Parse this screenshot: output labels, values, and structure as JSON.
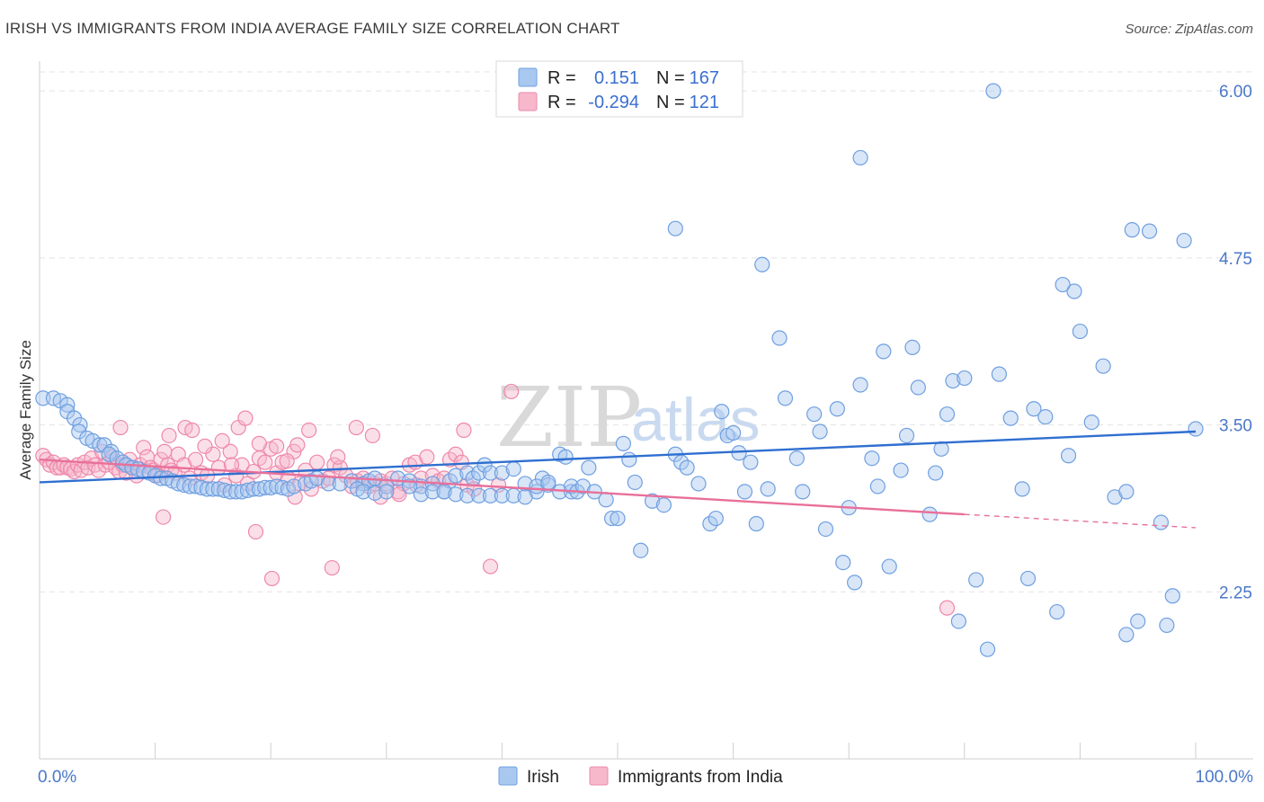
{
  "title": "IRISH VS IMMIGRANTS FROM INDIA AVERAGE FAMILY SIZE CORRELATION CHART",
  "source": "Source: ZipAtlas.com",
  "watermark": {
    "zip": "ZIP",
    "atlas": "atlas"
  },
  "legend": {
    "r_label": "R =",
    "n_label": "N =",
    "rows": [
      {
        "r": "0.151",
        "n": "167"
      },
      {
        "r": "-0.294",
        "n": "121"
      }
    ]
  },
  "colors": {
    "irish_fill": "#a8c8f0",
    "irish_stroke": "#6f9fe0",
    "irish_line": "#2f6fd0",
    "india_fill": "#f7b8cc",
    "india_stroke": "#ee88aa",
    "india_line": "#e8709a",
    "grid": "#e3e3e3",
    "axis_text": "#4a78c8"
  },
  "chart_data": {
    "type": "scatter",
    "title": "IRISH VS IMMIGRANTS FROM INDIA AVERAGE FAMILY SIZE CORRELATION CHART",
    "xlabel": "",
    "ylabel": "Average Family Size",
    "x_tick_labels": [
      "0.0%",
      "100.0%"
    ],
    "xlim": [
      0,
      100
    ],
    "ylim": [
      1.0,
      6.25
    ],
    "yticks": [
      2.25,
      3.5,
      4.75,
      6.0
    ],
    "ytick_labels": [
      "2.25",
      "3.50",
      "4.75",
      "6.00"
    ],
    "grid": "horizontal dashed",
    "legend_position": "top-center",
    "series": [
      {
        "name": "Irish",
        "R": 0.151,
        "N": 167,
        "trend": {
          "x0": 0,
          "y0": 3.07,
          "x1": 100,
          "y1": 3.45
        },
        "points": [
          [
            0.3,
            3.7
          ],
          [
            1.2,
            3.7
          ],
          [
            1.8,
            3.68
          ],
          [
            2.4,
            3.65
          ],
          [
            2.4,
            3.6
          ],
          [
            3.0,
            3.55
          ],
          [
            3.5,
            3.5
          ],
          [
            3.4,
            3.45
          ],
          [
            4.1,
            3.4
          ],
          [
            4.6,
            3.38
          ],
          [
            5.2,
            3.35
          ],
          [
            5.6,
            3.35
          ],
          [
            6.2,
            3.3
          ],
          [
            6.0,
            3.28
          ],
          [
            6.7,
            3.25
          ],
          [
            7.2,
            3.22
          ],
          [
            7.5,
            3.2
          ],
          [
            8.0,
            3.18
          ],
          [
            8.5,
            3.17
          ],
          [
            9.0,
            3.15
          ],
          [
            9.5,
            3.14
          ],
          [
            10.0,
            3.12
          ],
          [
            10.5,
            3.1
          ],
          [
            11.0,
            3.1
          ],
          [
            11.5,
            3.08
          ],
          [
            12.0,
            3.06
          ],
          [
            12.5,
            3.05
          ],
          [
            13.0,
            3.04
          ],
          [
            13.5,
            3.04
          ],
          [
            14.0,
            3.03
          ],
          [
            14.5,
            3.02
          ],
          [
            15.0,
            3.02
          ],
          [
            15.5,
            3.02
          ],
          [
            16.0,
            3.01
          ],
          [
            16.5,
            3.0
          ],
          [
            17.0,
            3.0
          ],
          [
            17.5,
            3.0
          ],
          [
            18.0,
            3.01
          ],
          [
            18.5,
            3.02
          ],
          [
            19.0,
            3.02
          ],
          [
            19.5,
            3.03
          ],
          [
            20.0,
            3.03
          ],
          [
            20.5,
            3.04
          ],
          [
            21.0,
            3.03
          ],
          [
            21.5,
            3.02
          ],
          [
            22.0,
            3.04
          ],
          [
            23.0,
            3.06
          ],
          [
            23.5,
            3.08
          ],
          [
            24.0,
            3.1
          ],
          [
            25.0,
            3.06
          ],
          [
            26.0,
            3.06
          ],
          [
            27.0,
            3.08
          ],
          [
            28.0,
            3.06
          ],
          [
            28.5,
            3.08
          ],
          [
            29.0,
            3.1
          ],
          [
            30.0,
            3.04
          ],
          [
            31.0,
            3.1
          ],
          [
            32.0,
            3.08
          ],
          [
            33.0,
            3.04
          ],
          [
            34.0,
            3.06
          ],
          [
            35.0,
            3.0
          ],
          [
            35.5,
            3.08
          ],
          [
            36.0,
            3.12
          ],
          [
            37.0,
            3.14
          ],
          [
            37.5,
            3.1
          ],
          [
            38.0,
            3.14
          ],
          [
            38.5,
            3.2
          ],
          [
            39.0,
            3.14
          ],
          [
            40.0,
            3.14
          ],
          [
            41.0,
            3.17
          ],
          [
            42.0,
            3.06
          ],
          [
            43.0,
            3.0
          ],
          [
            43.5,
            3.1
          ],
          [
            44.0,
            3.05
          ],
          [
            45.0,
            3.0
          ],
          [
            46.0,
            3.0
          ],
          [
            27.5,
            3.02
          ],
          [
            28.0,
            3.0
          ],
          [
            29.0,
            2.99
          ],
          [
            30.0,
            3.0
          ],
          [
            32.0,
            3.04
          ],
          [
            33.0,
            2.98
          ],
          [
            34.0,
            3.0
          ],
          [
            35.0,
            3.0
          ],
          [
            36.0,
            2.98
          ],
          [
            37.0,
            2.97
          ],
          [
            38.0,
            2.97
          ],
          [
            39.0,
            2.97
          ],
          [
            40.0,
            2.97
          ],
          [
            41.0,
            2.97
          ],
          [
            42.0,
            2.96
          ],
          [
            43.0,
            3.04
          ],
          [
            44.0,
            3.07
          ],
          [
            45.0,
            3.28
          ],
          [
            45.5,
            3.26
          ],
          [
            46.0,
            3.04
          ],
          [
            46.5,
            3.0
          ],
          [
            47.0,
            3.04
          ],
          [
            47.5,
            3.18
          ],
          [
            48.0,
            3.0
          ],
          [
            49.0,
            2.94
          ],
          [
            49.5,
            2.8
          ],
          [
            50.0,
            2.8
          ],
          [
            50.5,
            3.36
          ],
          [
            51.0,
            3.24
          ],
          [
            51.5,
            3.07
          ],
          [
            52.0,
            2.56
          ],
          [
            53.0,
            2.93
          ],
          [
            54.0,
            2.9
          ],
          [
            55.0,
            3.28
          ],
          [
            55.5,
            3.22
          ],
          [
            56.0,
            3.18
          ],
          [
            57.0,
            3.06
          ],
          [
            58.0,
            2.76
          ],
          [
            58.5,
            2.8
          ],
          [
            59.0,
            3.6
          ],
          [
            59.5,
            3.42
          ],
          [
            60.0,
            3.44
          ],
          [
            60.5,
            3.29
          ],
          [
            61.5,
            3.22
          ],
          [
            61.0,
            3.0
          ],
          [
            62.0,
            2.76
          ],
          [
            63.0,
            3.02
          ],
          [
            64.0,
            4.15
          ],
          [
            64.5,
            3.7
          ],
          [
            65.5,
            3.25
          ],
          [
            66.0,
            3.0
          ],
          [
            67.0,
            3.58
          ],
          [
            67.5,
            3.45
          ],
          [
            68.0,
            2.72
          ],
          [
            69.0,
            3.62
          ],
          [
            69.5,
            2.47
          ],
          [
            70.0,
            2.88
          ],
          [
            70.5,
            2.32
          ],
          [
            71.0,
            3.8
          ],
          [
            72.0,
            3.25
          ],
          [
            72.5,
            3.04
          ],
          [
            73.0,
            4.05
          ],
          [
            73.5,
            2.44
          ],
          [
            74.5,
            3.16
          ],
          [
            75.0,
            3.42
          ],
          [
            75.5,
            4.08
          ],
          [
            76.0,
            3.78
          ],
          [
            77.0,
            2.83
          ],
          [
            77.5,
            3.14
          ],
          [
            78.0,
            3.32
          ],
          [
            78.5,
            3.58
          ],
          [
            79.0,
            3.83
          ],
          [
            79.5,
            2.03
          ],
          [
            80.0,
            3.85
          ],
          [
            81.0,
            2.34
          ],
          [
            82.0,
            1.82
          ],
          [
            83.0,
            3.88
          ],
          [
            84.0,
            3.55
          ],
          [
            85.0,
            3.02
          ],
          [
            85.5,
            2.35
          ],
          [
            86.0,
            3.62
          ],
          [
            87.0,
            3.56
          ],
          [
            88.0,
            2.1
          ],
          [
            89.0,
            3.27
          ],
          [
            90.0,
            4.2
          ],
          [
            91.0,
            3.52
          ],
          [
            92.0,
            3.94
          ],
          [
            93.0,
            2.96
          ],
          [
            94.0,
            3.0
          ],
          [
            95.0,
            2.03
          ],
          [
            96.0,
            4.95
          ],
          [
            97.0,
            2.77
          ],
          [
            98.0,
            2.22
          ],
          [
            99.0,
            4.88
          ],
          [
            100.0,
            3.47
          ],
          [
            62.5,
            4.7
          ],
          [
            55.0,
            4.97
          ],
          [
            71.0,
            5.5
          ],
          [
            82.5,
            6.0
          ],
          [
            88.5,
            4.55
          ],
          [
            89.5,
            4.5
          ],
          [
            94.5,
            4.96
          ],
          [
            94.0,
            1.93
          ],
          [
            97.5,
            2.0
          ]
        ]
      },
      {
        "name": "Immigrants from India",
        "R": -0.294,
        "N": 121,
        "trend": {
          "x0": 0,
          "y0": 3.24,
          "x1": 80,
          "y1": 2.83,
          "dash_to_x": 100,
          "dash_to_y": 2.73
        },
        "points": [
          [
            0.3,
            3.27
          ],
          [
            0.6,
            3.24
          ],
          [
            0.9,
            3.2
          ],
          [
            1.2,
            3.22
          ],
          [
            1.5,
            3.18
          ],
          [
            1.8,
            3.18
          ],
          [
            2.1,
            3.2
          ],
          [
            2.4,
            3.18
          ],
          [
            2.7,
            3.17
          ],
          [
            3.0,
            3.15
          ],
          [
            3.3,
            3.2
          ],
          [
            3.6,
            3.16
          ],
          [
            3.9,
            3.22
          ],
          [
            4.2,
            3.18
          ],
          [
            4.5,
            3.25
          ],
          [
            4.8,
            3.2
          ],
          [
            5.1,
            3.16
          ],
          [
            5.4,
            3.3
          ],
          [
            5.7,
            3.2
          ],
          [
            6.0,
            3.22
          ],
          [
            6.3,
            3.26
          ],
          [
            6.6,
            3.18
          ],
          [
            6.9,
            3.15
          ],
          [
            7.2,
            3.2
          ],
          [
            7.5,
            3.14
          ],
          [
            7.8,
            3.24
          ],
          [
            8.1,
            3.18
          ],
          [
            8.4,
            3.12
          ],
          [
            8.7,
            3.2
          ],
          [
            9.0,
            3.33
          ],
          [
            9.3,
            3.26
          ],
          [
            9.6,
            3.18
          ],
          [
            9.9,
            3.16
          ],
          [
            10.2,
            3.12
          ],
          [
            10.5,
            3.24
          ],
          [
            10.8,
            3.3
          ],
          [
            11.1,
            3.2
          ],
          [
            11.4,
            3.16
          ],
          [
            11.7,
            3.14
          ],
          [
            12.0,
            3.28
          ],
          [
            12.5,
            3.2
          ],
          [
            13.0,
            3.1
          ],
          [
            13.5,
            3.24
          ],
          [
            14.0,
            3.14
          ],
          [
            14.5,
            3.12
          ],
          [
            15.0,
            3.28
          ],
          [
            15.5,
            3.18
          ],
          [
            16.0,
            3.05
          ],
          [
            16.5,
            3.3
          ],
          [
            17.0,
            3.12
          ],
          [
            17.5,
            3.2
          ],
          [
            18.0,
            3.06
          ],
          [
            18.5,
            3.15
          ],
          [
            19.0,
            3.25
          ],
          [
            19.5,
            3.22
          ],
          [
            20.0,
            3.32
          ],
          [
            20.5,
            3.14
          ],
          [
            21.0,
            3.22
          ],
          [
            21.5,
            3.1
          ],
          [
            22.0,
            3.3
          ],
          [
            22.5,
            3.06
          ],
          [
            23.0,
            3.16
          ],
          [
            23.5,
            3.02
          ],
          [
            24.0,
            3.22
          ],
          [
            24.5,
            3.08
          ],
          [
            25.0,
            3.1
          ],
          [
            25.5,
            3.2
          ],
          [
            26.0,
            3.18
          ],
          [
            26.5,
            3.12
          ],
          [
            27.0,
            3.04
          ],
          [
            27.5,
            3.08
          ],
          [
            28.0,
            3.1
          ],
          [
            28.5,
            3.04
          ],
          [
            29.0,
            3.06
          ],
          [
            29.5,
            3.08
          ],
          [
            30.0,
            3.06
          ],
          [
            30.5,
            3.1
          ],
          [
            31.0,
            3.0
          ],
          [
            31.5,
            3.06
          ],
          [
            32.0,
            3.2
          ],
          [
            32.5,
            3.22
          ],
          [
            33.0,
            3.1
          ],
          [
            33.5,
            3.26
          ],
          [
            34.0,
            3.12
          ],
          [
            34.5,
            3.08
          ],
          [
            35.0,
            3.1
          ],
          [
            35.5,
            3.24
          ],
          [
            36.0,
            3.28
          ],
          [
            36.5,
            3.22
          ],
          [
            37.0,
            3.05
          ],
          [
            7.0,
            3.48
          ],
          [
            11.2,
            3.42
          ],
          [
            12.6,
            3.48
          ],
          [
            13.2,
            3.46
          ],
          [
            17.2,
            3.48
          ],
          [
            17.8,
            3.55
          ],
          [
            19.0,
            3.36
          ],
          [
            20.5,
            3.34
          ],
          [
            22.3,
            3.35
          ],
          [
            23.3,
            3.46
          ],
          [
            27.4,
            3.48
          ],
          [
            28.8,
            3.42
          ],
          [
            36.7,
            3.46
          ],
          [
            40.8,
            3.75
          ],
          [
            10.7,
            2.81
          ],
          [
            18.7,
            2.7
          ],
          [
            20.1,
            2.35
          ],
          [
            22.1,
            2.96
          ],
          [
            25.3,
            2.43
          ],
          [
            29.5,
            2.96
          ],
          [
            31.1,
            2.98
          ],
          [
            32.6,
            3.05
          ],
          [
            39.7,
            3.05
          ],
          [
            39.0,
            2.44
          ],
          [
            78.5,
            2.13
          ],
          [
            15.8,
            3.38
          ],
          [
            25.8,
            3.26
          ],
          [
            37.6,
            3.02
          ],
          [
            14.3,
            3.34
          ],
          [
            21.4,
            3.23
          ],
          [
            16.6,
            3.2
          ]
        ]
      }
    ]
  },
  "bottom_legend": [
    {
      "label": "Irish"
    },
    {
      "label": "Immigrants from India"
    }
  ]
}
